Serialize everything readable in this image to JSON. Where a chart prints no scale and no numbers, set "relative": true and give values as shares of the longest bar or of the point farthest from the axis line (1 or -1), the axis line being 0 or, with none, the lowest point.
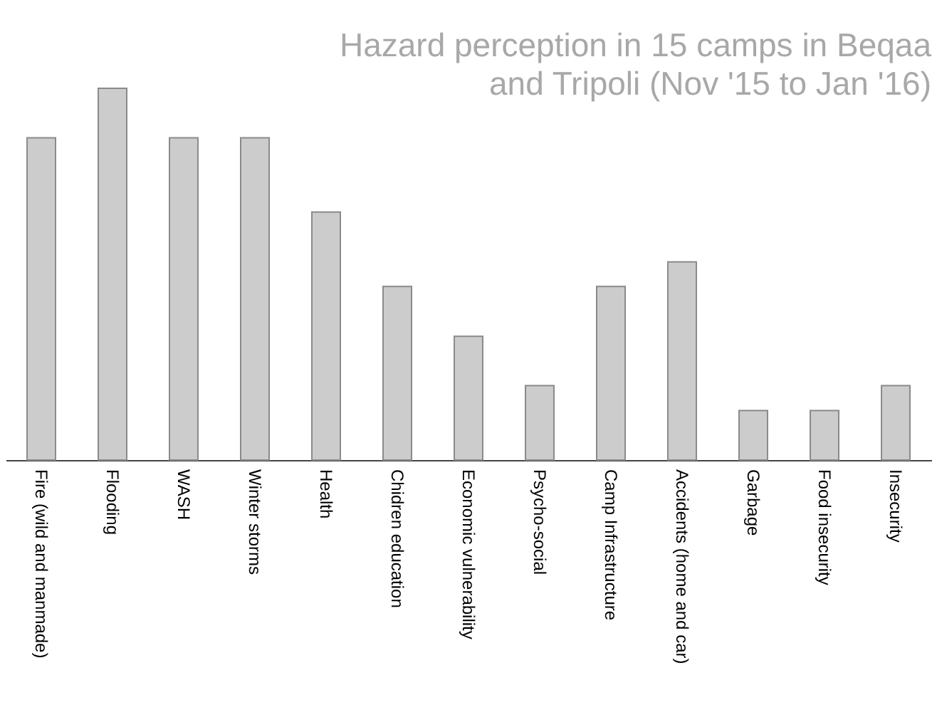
{
  "chart_data": {
    "type": "bar",
    "title": "Hazard perception in 15 camps in Beqaa and Tripoli (Nov '15 to Jan '16)",
    "categories": [
      "Fire (wild and manmade)",
      "Flooding",
      "WASH",
      "Winter storms",
      "Health",
      "Chidren education",
      "Economic vulnerability",
      "Psycho-social",
      "Camp Infrastructure",
      "Accidents (home and car)",
      "Garbage",
      "Food insecurity",
      "Insecurity"
    ],
    "values": [
      0.867,
      1,
      0.867,
      0.867,
      0.667,
      0.467,
      0.333,
      0.2,
      0.467,
      0.533,
      0.133,
      0.133,
      0.2
    ],
    "color": "#cccccc",
    "relative": true
  }
}
